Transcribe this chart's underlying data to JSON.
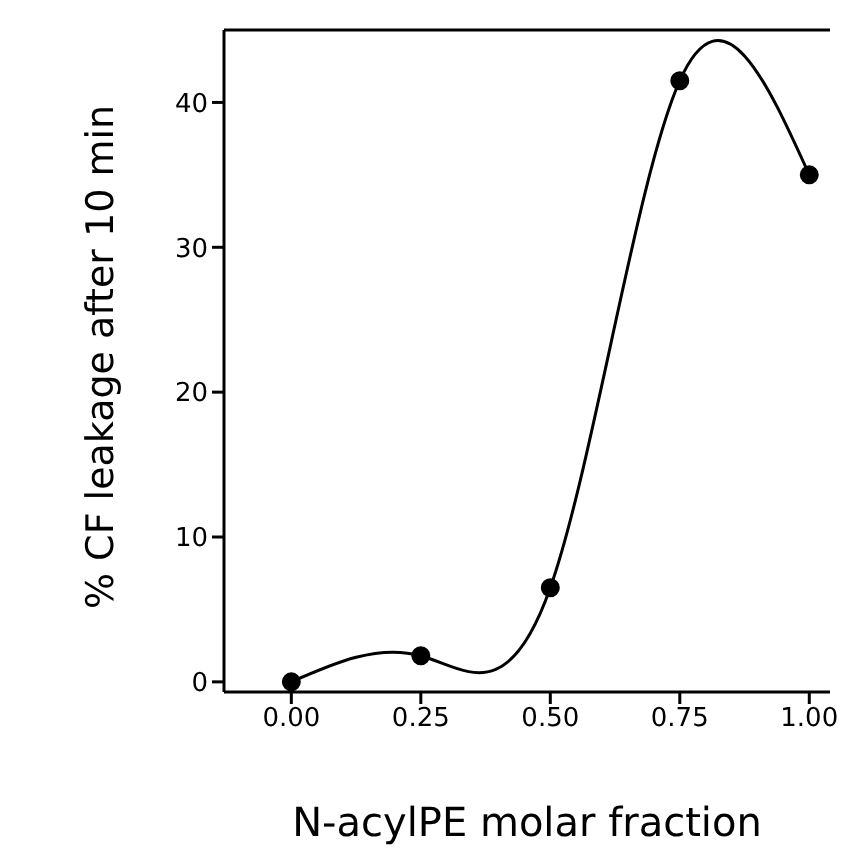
{
  "chart_data": {
    "type": "line",
    "xlabel": "N-acylPE molar fraction",
    "ylabel": "% CF leakage after 10 min",
    "x": [
      0,
      0.25,
      0.5,
      0.75,
      1
    ],
    "series": [
      {
        "color": "#000000",
        "values": [
          0,
          1.8,
          6.5,
          41.5,
          35
        ]
      }
    ],
    "xlim": [
      -0.13,
      1.04
    ],
    "ylim": [
      -0.7,
      45
    ],
    "xticks": [
      {
        "value": 0,
        "label": "0.00"
      },
      {
        "value": 0.25,
        "label": "0.25"
      },
      {
        "value": 0.5,
        "label": "0.50"
      },
      {
        "value": 0.75,
        "label": "0.75"
      },
      {
        "value": 1,
        "label": "1.00"
      }
    ],
    "yticks": [
      0,
      10,
      20,
      30,
      40
    ],
    "marker": "circle",
    "grid": false,
    "legend": false
  }
}
